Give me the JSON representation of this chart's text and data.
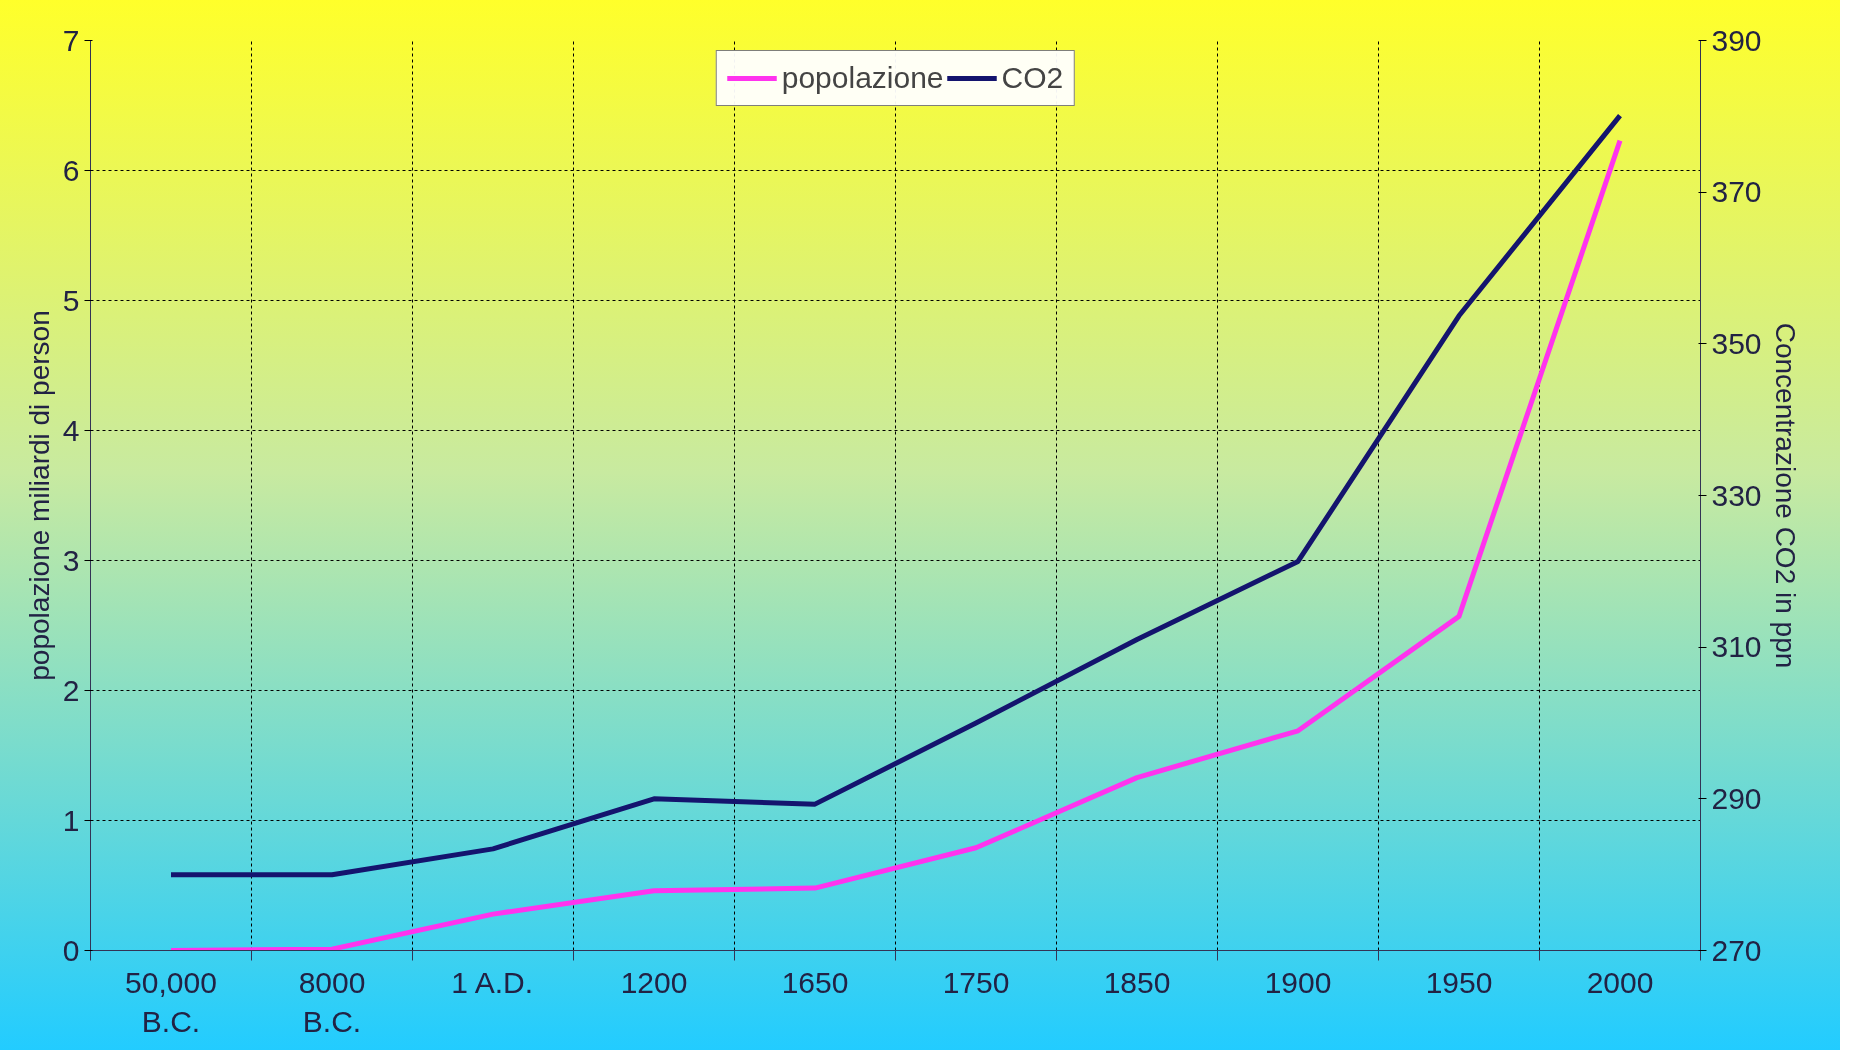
{
  "chart_data": {
    "type": "line",
    "ylabel": "popolazione miliardi di person",
    "y2label": "Concentrazione CO2 in ppn",
    "categories": [
      "50,000\nB.C.",
      "8000\nB.C.",
      "1 A.D.",
      "1200",
      "1650",
      "1750",
      "1850",
      "1900",
      "1950",
      "2000"
    ],
    "series": [
      {
        "name": "popolazione",
        "color": "#ff33ee",
        "values": [
          0,
          0.01,
          0.28,
          0.46,
          0.48,
          0.79,
          1.33,
          1.69,
          2.57,
          6.23
        ]
      },
      {
        "name": "CO2",
        "color": "#14146e",
        "axis": "y2",
        "values": [
          280,
          280,
          283.4,
          290,
          289.3,
          300,
          311,
          321.3,
          353.7,
          380.1
        ]
      }
    ],
    "ylim": [
      0,
      7
    ],
    "yticks": [
      0,
      1,
      2,
      3,
      4,
      5,
      6,
      7
    ],
    "y2lim": [
      270,
      390
    ],
    "y2ticks": [
      270,
      290,
      310,
      330,
      350,
      370,
      390
    ],
    "grid": true,
    "legend": "top",
    "line_style": "solid"
  }
}
